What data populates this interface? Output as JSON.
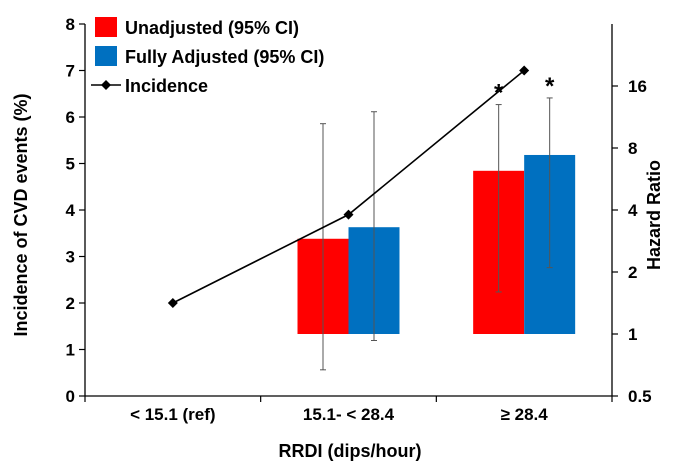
{
  "chart_data": {
    "type": "bar",
    "categories": [
      "< 15.1 (ref)",
      "15.1- < 28.4",
      "≥ 28.4"
    ],
    "xlabel": "RRDI (dips/hour)",
    "ylabel_left": "Incidence of CVD events (%)",
    "ylabel_right": "Hazard Ratio",
    "y_left": {
      "min": 0,
      "max": 8,
      "ticks": [
        "0",
        "1",
        "2",
        "3",
        "4",
        "5",
        "6",
        "7",
        "8"
      ]
    },
    "y_right": {
      "scale": "log2",
      "min": 0.5,
      "max": 32,
      "ticks": [
        "0.5",
        "1",
        "2",
        "4",
        "8",
        "16"
      ],
      "tick_values": [
        0.5,
        1,
        2,
        4,
        8,
        16
      ]
    },
    "bar_baseline_hr": 1,
    "series": [
      {
        "name": "Unadjusted (95% CI)",
        "kind": "bar",
        "axis": "right",
        "color": "#ff0000",
        "values": [
          null,
          2.9,
          6.2
        ],
        "ci_low": [
          null,
          0.67,
          1.6
        ],
        "ci_high": [
          null,
          10.5,
          13.0
        ]
      },
      {
        "name": "Fully Adjusted (95% CI)",
        "kind": "bar",
        "axis": "right",
        "color": "#0070c0",
        "values": [
          null,
          3.3,
          7.4
        ],
        "ci_low": [
          null,
          0.93,
          2.1
        ],
        "ci_high": [
          null,
          12.0,
          14.0
        ]
      },
      {
        "name": "Incidence",
        "kind": "line",
        "axis": "left",
        "color": "#000000",
        "marker": "diamond",
        "values": [
          2.0,
          3.9,
          7.0
        ]
      }
    ],
    "significance_marker": "*",
    "significant_categories": [
      2
    ],
    "legend_position": "top-left",
    "grid": false
  }
}
